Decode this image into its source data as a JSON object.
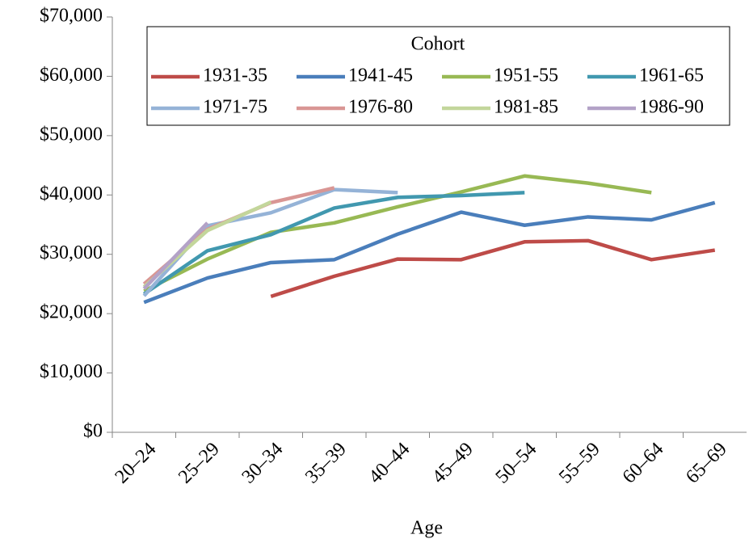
{
  "chart_data": {
    "type": "line",
    "x_label": "Age",
    "legend_title": "Cohort",
    "categories": [
      "20–24",
      "25–29",
      "30–34",
      "35–39",
      "40–44",
      "45–49",
      "50–54",
      "55–59",
      "60–64",
      "65–69"
    ],
    "ylim": [
      0,
      70000
    ],
    "yticks": [
      {
        "value": 0,
        "label": "$0"
      },
      {
        "value": 10000,
        "label": "$10,000"
      },
      {
        "value": 20000,
        "label": "$20,000"
      },
      {
        "value": 30000,
        "label": "$30,000"
      },
      {
        "value": 40000,
        "label": "$40,000"
      },
      {
        "value": 50000,
        "label": "$50,000"
      },
      {
        "value": 60000,
        "label": "$60,000"
      },
      {
        "value": 70000,
        "label": "$70,000"
      }
    ],
    "series": [
      {
        "name": "1931-35",
        "color": "#be4b48",
        "values": [
          null,
          null,
          22900,
          26300,
          29200,
          29100,
          32100,
          32300,
          29100,
          30700
        ]
      },
      {
        "name": "1941-45",
        "color": "#4a7ebb",
        "values": [
          21900,
          26000,
          28600,
          29100,
          33400,
          37100,
          34900,
          36300,
          35800,
          38700
        ]
      },
      {
        "name": "1951-55",
        "color": "#98b954",
        "values": [
          23800,
          29200,
          33700,
          35300,
          38000,
          40500,
          43200,
          42000,
          40400,
          null
        ]
      },
      {
        "name": "1961-65",
        "color": "#4198af",
        "values": [
          23300,
          30600,
          33300,
          37800,
          39600,
          39900,
          40400,
          null,
          null,
          null
        ]
      },
      {
        "name": "1971-75",
        "color": "#95b3d7",
        "values": [
          23000,
          34800,
          37000,
          40900,
          40400,
          null,
          null,
          null,
          null,
          null
        ]
      },
      {
        "name": "1976-80",
        "color": "#d99694",
        "values": [
          25000,
          34200,
          38700,
          41200,
          null,
          null,
          null,
          null,
          null,
          null
        ]
      },
      {
        "name": "1981-85",
        "color": "#c3d69b",
        "values": [
          24500,
          34000,
          38800,
          null,
          null,
          null,
          null,
          null,
          null,
          null
        ]
      },
      {
        "name": "1986-90",
        "color": "#b3a2c7",
        "values": [
          24200,
          35300,
          null,
          null,
          null,
          null,
          null,
          null,
          null,
          null
        ]
      }
    ]
  }
}
